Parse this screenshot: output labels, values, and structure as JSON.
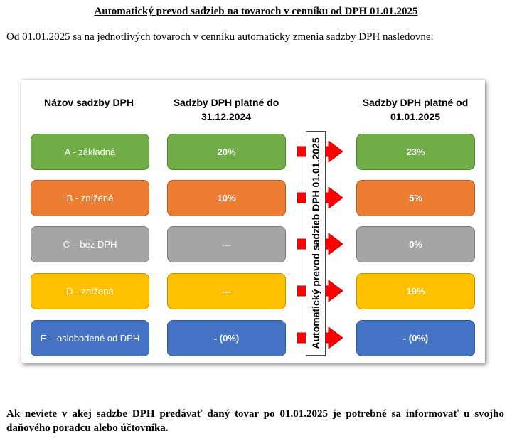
{
  "document": {
    "title": "Automatický prevod sadzieb na tovaroch v cenníku od DPH 01.01.2025",
    "intro": "Od 01.01.2025 sa na jednotlivých tovaroch v cenníku automaticky zmenia sadzby DPH nasledovne:",
    "footer": "Ak neviete v akej sadzbe DPH predávať daný tovar po 01.01.2025 je potrebné sa informovať u svojho daňového poradcu alebo účtovníka."
  },
  "table": {
    "headers": {
      "name": "Názov sadzby DPH",
      "old_line1": "Sadzby DPH platné do",
      "old_line2": "31.12.2024",
      "new_line1": "Sadzby DPH platné od",
      "new_line2": "01.01.2025"
    },
    "conversion_label": "Automatický prevod sadzieb DPH 01.01.2025",
    "rows": [
      {
        "name": "A - základná",
        "old": "20%",
        "new": "23%",
        "color": "#70ad47"
      },
      {
        "name": "B - znížená",
        "old": "10%",
        "new": "5%",
        "color": "#ed7d31"
      },
      {
        "name": "C – bez DPH",
        "old": "---",
        "new": "0%",
        "color": "#a5a5a5"
      },
      {
        "name": "D - znížená",
        "old": "---",
        "new": "19%",
        "color": "#ffc000"
      },
      {
        "name": "E – oslobodené od DPH",
        "old": "- (0%)",
        "new": "- (0%)",
        "color": "#4472c4"
      }
    ],
    "arrow_color": "#ff0000"
  }
}
